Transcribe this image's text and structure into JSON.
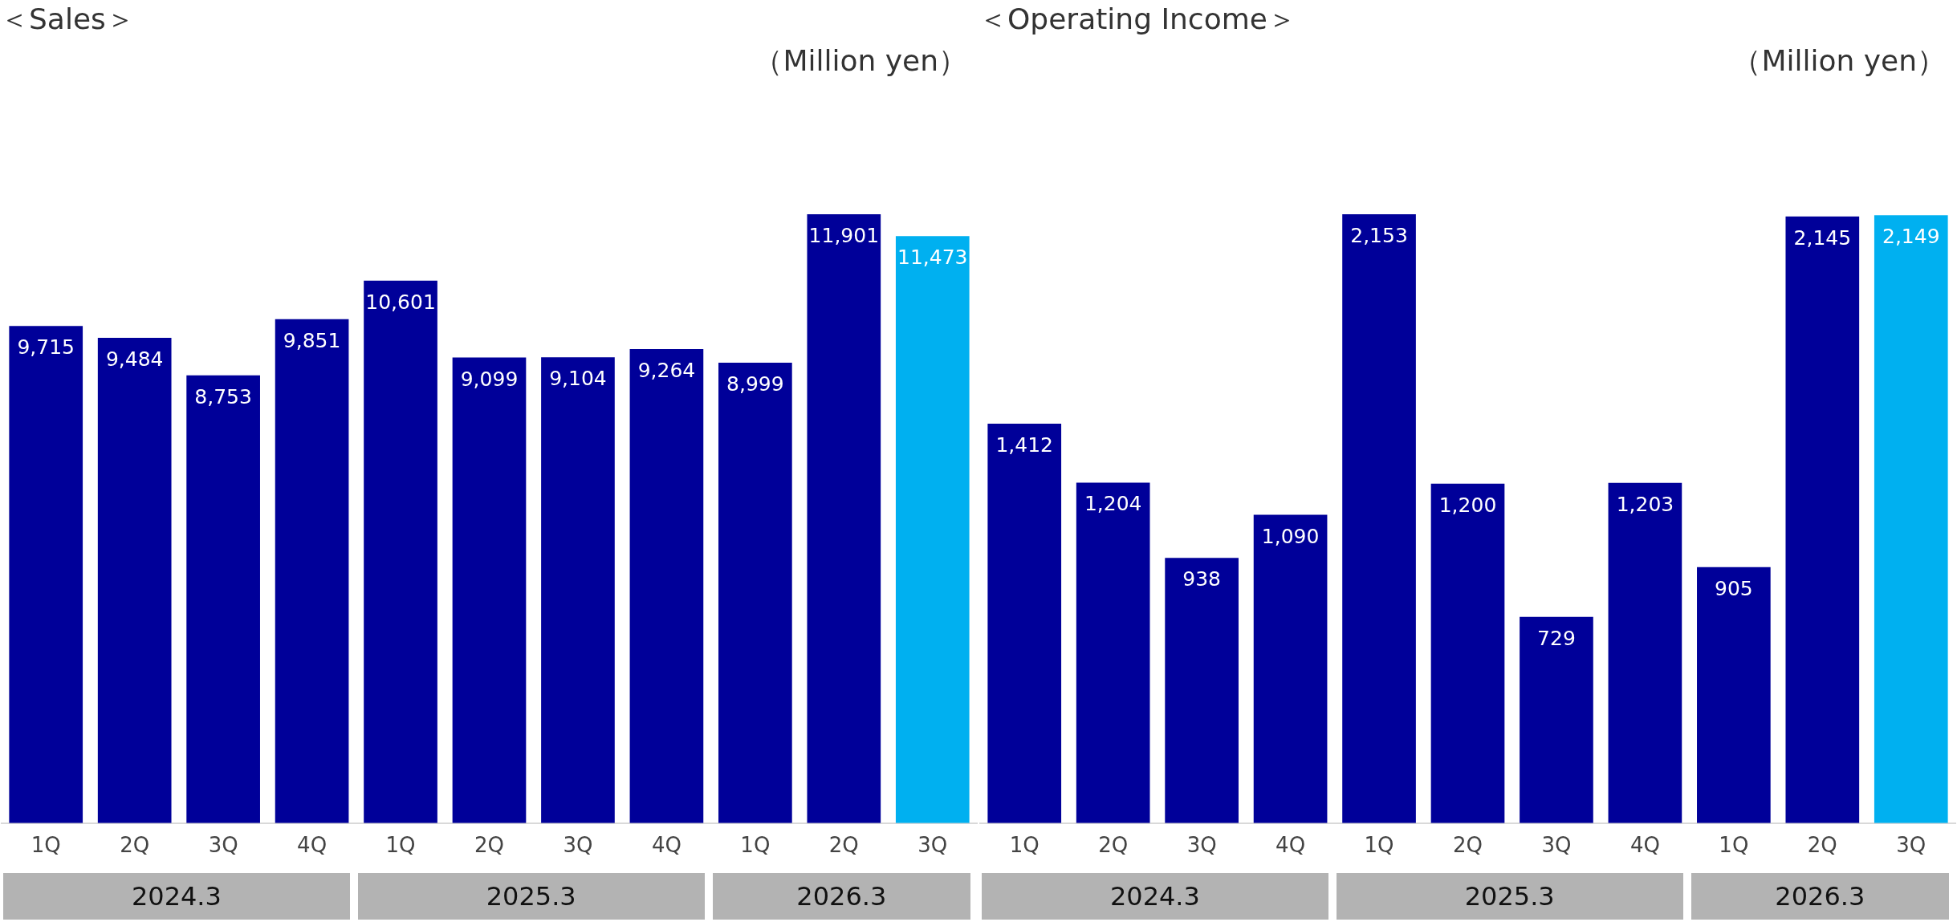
{
  "chart_data": [
    {
      "type": "bar",
      "title": "＜Sales＞",
      "subtitle": "（Million yen）",
      "categories": [
        "1Q",
        "2Q",
        "3Q",
        "4Q",
        "1Q",
        "2Q",
        "3Q",
        "4Q",
        "1Q",
        "2Q",
        "3Q"
      ],
      "values": [
        9715,
        9484,
        8753,
        9851,
        10601,
        9099,
        9104,
        9264,
        8999,
        11901,
        11473
      ],
      "value_labels": [
        "9,715",
        "9,484",
        "8,753",
        "9,851",
        "10,601",
        "9,099",
        "9,104",
        "9,264",
        "8,999",
        "11,901",
        "11,473"
      ],
      "colors": [
        "#000099",
        "#000099",
        "#000099",
        "#000099",
        "#000099",
        "#000099",
        "#000099",
        "#000099",
        "#000099",
        "#000099",
        "#00b0f0"
      ],
      "grid": false,
      "legend": false,
      "tick_labels": "x",
      "annotations": [
        "2024.3",
        "2025.3",
        "2026.3"
      ]
    },
    {
      "type": "bar",
      "title": "＜Operating Income＞",
      "subtitle": "（Million yen）",
      "categories": [
        "1Q",
        "2Q",
        "3Q",
        "4Q",
        "1Q",
        "2Q",
        "3Q",
        "4Q",
        "1Q",
        "2Q",
        "3Q"
      ],
      "values": [
        1412,
        1204,
        938,
        1090,
        2153,
        1200,
        729,
        1203,
        905,
        2145,
        2149
      ],
      "value_labels": [
        "1,412",
        "1,204",
        "938",
        "1,090",
        "2,153",
        "1,200",
        "729",
        "1,203",
        "905",
        "2,145",
        "2,149"
      ],
      "colors": [
        "#000099",
        "#000099",
        "#000099",
        "#000099",
        "#000099",
        "#000099",
        "#000099",
        "#000099",
        "#000099",
        "#000099",
        "#00b0f0"
      ],
      "grid": false,
      "legend": false,
      "tick_labels": "x",
      "annotations": [
        "2024.3",
        "2025.3",
        "2026.3"
      ]
    }
  ]
}
